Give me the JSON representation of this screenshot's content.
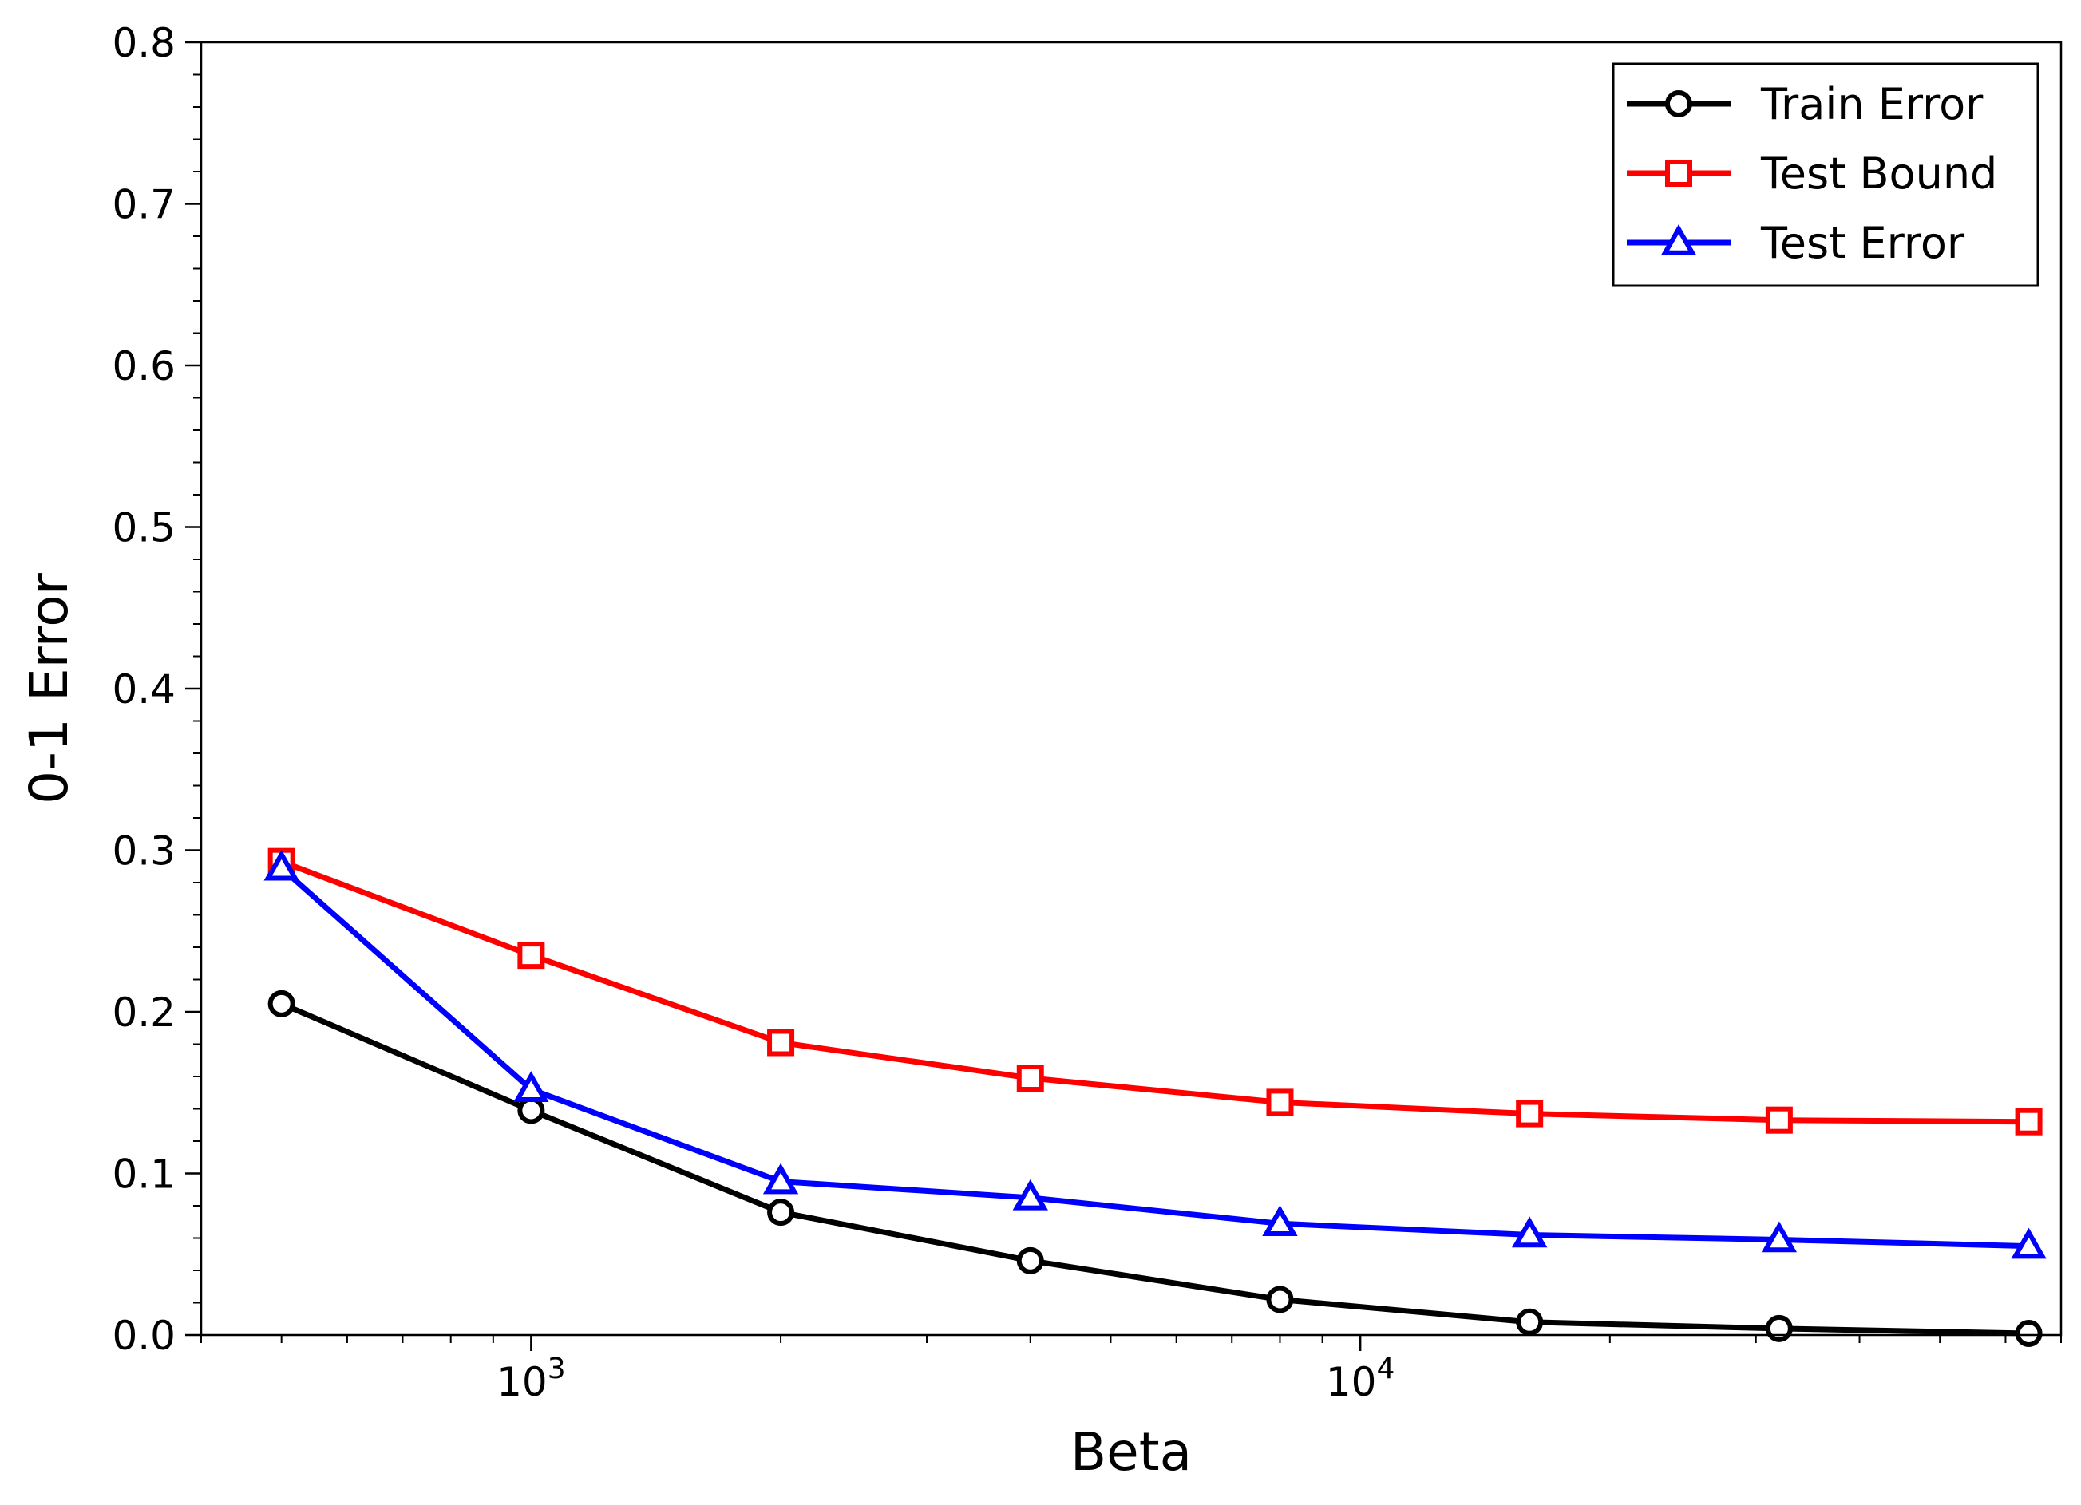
{
  "chart_data": {
    "type": "line",
    "title": "",
    "xlabel": "Beta",
    "ylabel": "0-1 Error",
    "xscale": "log",
    "xlim": [
      400,
      70000
    ],
    "ylim": [
      0,
      0.8
    ],
    "yticks": [
      "0.0",
      "0.1",
      "0.2",
      "0.3",
      "0.4",
      "0.5",
      "0.6",
      "0.7",
      "0.8"
    ],
    "xticks": [
      {
        "value": 1000,
        "base": "10",
        "exponent": "3"
      },
      {
        "value": 10000,
        "base": "10",
        "exponent": "4"
      }
    ],
    "grid": false,
    "legend_position": "top-right",
    "x": [
      500,
      1000,
      2000,
      4000,
      8000,
      16000,
      32000,
      64000
    ],
    "series": [
      {
        "name": "Train Error",
        "color": "#000000",
        "marker": "circle",
        "values": [
          0.205,
          0.139,
          0.076,
          0.046,
          0.022,
          0.008,
          0.004,
          0.001
        ]
      },
      {
        "name": "Test Bound",
        "color": "#ff0000",
        "marker": "square",
        "values": [
          0.293,
          0.235,
          0.181,
          0.159,
          0.144,
          0.137,
          0.133,
          0.132
        ]
      },
      {
        "name": "Test Error",
        "color": "#0000ff",
        "marker": "triangle",
        "values": [
          0.289,
          0.152,
          0.095,
          0.085,
          0.069,
          0.062,
          0.059,
          0.055
        ]
      }
    ]
  }
}
